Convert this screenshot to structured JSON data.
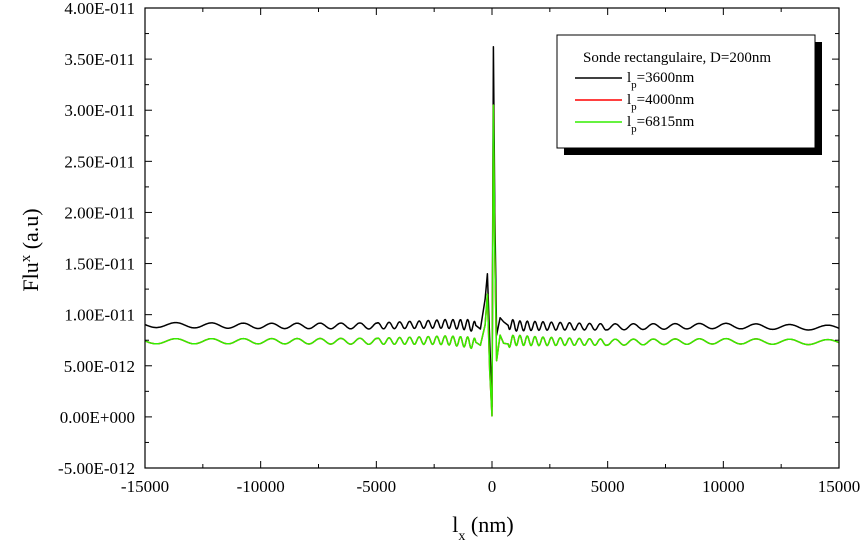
{
  "chart_data": {
    "type": "line",
    "xlabel_main": "l",
    "xlabel_sub": "x",
    "xlabel_rest": " (nm)",
    "ylabel_main": "Flu",
    "ylabel_sup": "x",
    "ylabel_rest": " (a.u)",
    "xlim": [
      -15000,
      15000
    ],
    "ylim": [
      -5e-12,
      4e-11
    ],
    "x_ticks": [
      -15000,
      -10000,
      -5000,
      0,
      5000,
      10000,
      15000
    ],
    "x_tick_labels": [
      "-15000",
      "-10000",
      "-5000",
      "0",
      "5000",
      "10000",
      "15000"
    ],
    "y_ticks": [
      -5e-12,
      0,
      5e-12,
      1e-11,
      1.5e-11,
      2e-11,
      2.5e-11,
      3e-11,
      3.5e-11,
      4e-11
    ],
    "y_tick_labels": [
      "-5.00E-012",
      "0.00E+000",
      "5.00E-012",
      "1.00E-011",
      "1.50E-011",
      "2.00E-011",
      "2.50E-011",
      "3.00E-011",
      "3.50E-011",
      "4.00E-011"
    ],
    "legend": {
      "title": "Sonde rectangulaire, D=200nm",
      "placement": "top-right",
      "entries": [
        {
          "main": "l",
          "sub": "p",
          "rest": "=3600nm"
        },
        {
          "main": "l",
          "sub": "p",
          "rest": "=4000nm"
        },
        {
          "main": "l",
          "sub": "p",
          "rest": "=6815nm"
        }
      ]
    },
    "series": [
      {
        "name": "lp=3600nm",
        "color": "#000000",
        "baseline": 8.9e-12,
        "x": [
          -15000,
          -10000,
          -5000,
          -2000,
          -1000,
          -500,
          -300,
          -200,
          -100,
          0,
          60,
          120,
          200,
          350,
          500,
          1000,
          2000,
          5000,
          10000,
          15000
        ],
        "y": [
          9e-12,
          8.9e-12,
          8.9e-12,
          9.1e-12,
          9e-12,
          8.6e-12,
          1.15e-11,
          1.4e-11,
          7.5e-12,
          1e-12,
          3.62e-11,
          2e-11,
          8e-12,
          9.7e-12,
          9.3e-12,
          8.9e-12,
          8.9e-12,
          8.8e-12,
          8.9e-12,
          8.7e-12
        ]
      },
      {
        "name": "lp=4000nm",
        "color": "#ff0000",
        "baseline": 7.4e-12,
        "x": [
          -15000,
          -10000,
          -5000,
          -2000,
          -1000,
          -500,
          -300,
          -200,
          -100,
          0,
          60,
          120,
          200,
          350,
          500,
          1000,
          2000,
          5000,
          10000,
          15000
        ],
        "y": [
          7.4e-12,
          7.4e-12,
          7.4e-12,
          7.5e-12,
          7.3e-12,
          7e-12,
          9e-12,
          1.2e-11,
          4.5e-12,
          1e-13,
          3.05e-11,
          1.6e-11,
          5.5e-12,
          8e-12,
          7.2e-12,
          7.5e-12,
          7.4e-12,
          7.3e-12,
          7.4e-12,
          7.3e-12
        ]
      },
      {
        "name": "lp=6815nm",
        "color": "#33ee00",
        "baseline": 7.4e-12,
        "x": [
          -15000,
          -10000,
          -5000,
          -2000,
          -1000,
          -500,
          -300,
          -200,
          -100,
          0,
          60,
          120,
          200,
          350,
          500,
          1000,
          2000,
          5000,
          10000,
          15000
        ],
        "y": [
          7.4e-12,
          7.4e-12,
          7.4e-12,
          7.5e-12,
          7.3e-12,
          7e-12,
          9e-12,
          1.2e-11,
          4.5e-12,
          1e-13,
          3.05e-11,
          1.6e-11,
          5.5e-12,
          8e-12,
          7.2e-12,
          7.5e-12,
          7.4e-12,
          7.3e-12,
          7.4e-12,
          7.3e-12
        ]
      }
    ],
    "grid": false
  }
}
